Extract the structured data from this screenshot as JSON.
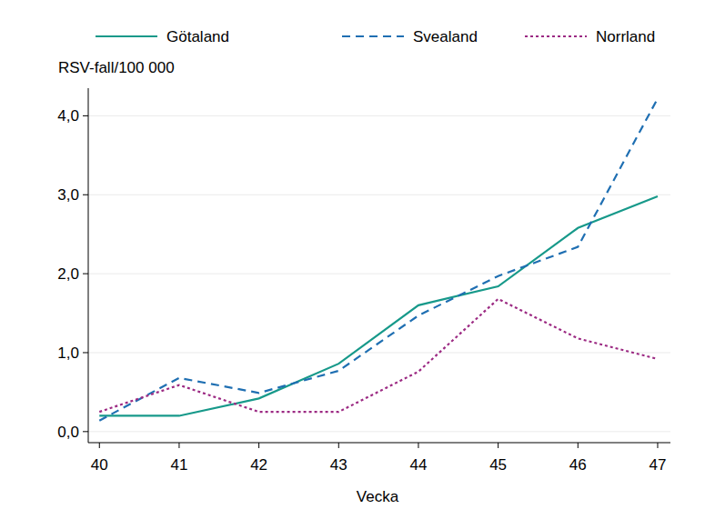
{
  "chart_data": {
    "type": "line",
    "y_label": "RSV-fall/100 000",
    "x_label": "Vecka",
    "x": [
      40,
      41,
      42,
      43,
      44,
      45,
      46,
      47
    ],
    "xlim": [
      39.86,
      47.16
    ],
    "xticks": [
      40,
      41,
      42,
      43,
      44,
      45,
      46,
      47
    ],
    "ylim": [
      -0.14,
      4.35
    ],
    "yticks": [
      {
        "value": 0,
        "label": "0,0"
      },
      {
        "value": 1,
        "label": "1,0"
      },
      {
        "value": 2,
        "label": "2,0"
      },
      {
        "value": 3,
        "label": "3,0"
      },
      {
        "value": 4,
        "label": "4,0"
      }
    ],
    "grid": true,
    "legend": "top",
    "series": [
      {
        "name": "Götaland",
        "color": "#17998a",
        "line_style": "solid",
        "values": [
          0.2,
          0.2,
          0.42,
          0.86,
          1.6,
          1.84,
          2.58,
          2.98
        ]
      },
      {
        "name": "Svealand",
        "color": "#1f6fb2",
        "line_style": "dashed",
        "values": [
          0.14,
          0.68,
          0.49,
          0.77,
          1.47,
          1.97,
          2.34,
          4.22
        ]
      },
      {
        "name": "Norrland",
        "color": "#9c2a83",
        "line_style": "dotted",
        "values": [
          0.25,
          0.59,
          0.25,
          0.25,
          0.76,
          1.68,
          1.18,
          0.92
        ]
      }
    ]
  }
}
